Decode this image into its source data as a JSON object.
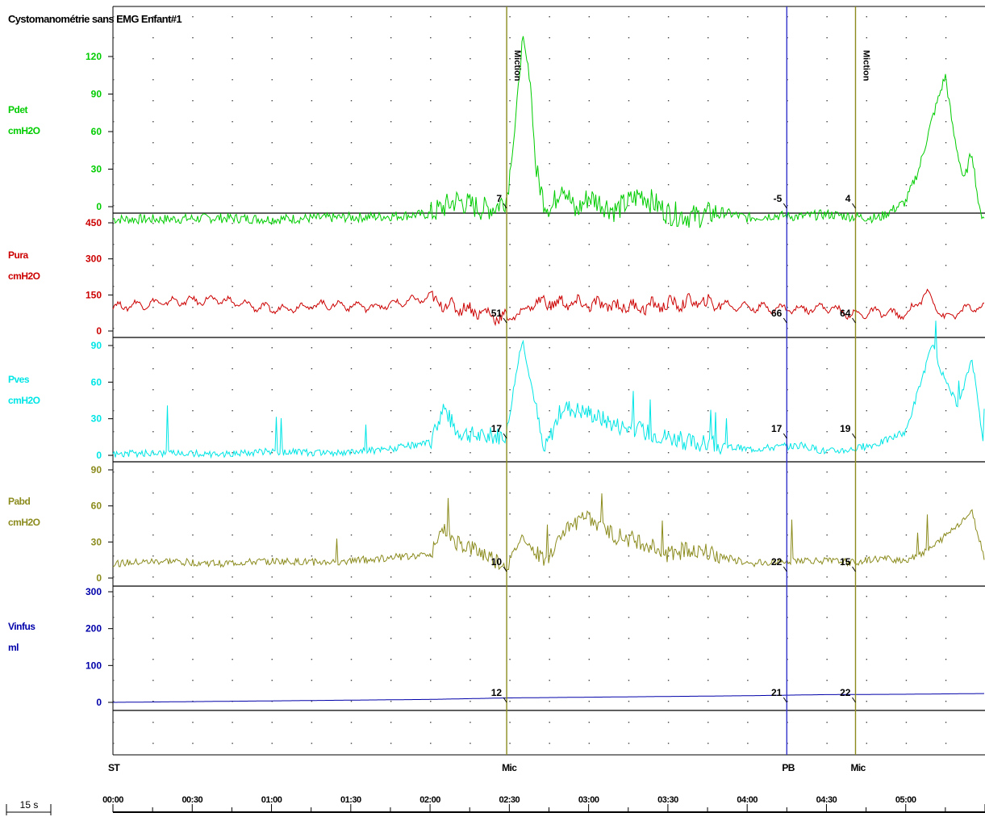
{
  "title": "Cystomanométrie sans EMG Enfant#1",
  "chart_data": {
    "type": "line",
    "title": "Cystomanométrie sans EMG Enfant#1",
    "time_axis": {
      "unit_label": "15 s",
      "range_seconds": [
        0,
        330
      ],
      "ticks": [
        "00:00",
        "00:30",
        "01:00",
        "01:30",
        "02:00",
        "02:30",
        "03:00",
        "03:30",
        "04:00",
        "04:30",
        "05:00"
      ]
    },
    "events": [
      {
        "label": "ST",
        "time": "00:00"
      },
      {
        "label": "Mic",
        "time": "02:29",
        "annotation": "Miction"
      },
      {
        "label": "PB",
        "time": "04:15"
      },
      {
        "label": "Mic",
        "time": "04:41",
        "annotation": "Miction"
      }
    ],
    "channels": [
      {
        "name": "Pdet",
        "unit": "cmH2O",
        "color": "#00cc00",
        "ticks": [
          0,
          30,
          60,
          90,
          120
        ],
        "ylim": [
          -10,
          130
        ],
        "baseline": 0,
        "markers": [
          7,
          -5,
          4
        ],
        "series_approx": {
          "t": [
            0,
            20,
            40,
            60,
            80,
            100,
            120,
            130,
            140,
            145,
            149,
            152,
            155,
            158,
            160,
            163,
            166,
            170,
            175,
            180,
            190,
            200,
            210,
            220,
            230,
            240,
            250,
            260,
            270,
            280,
            290,
            300,
            305,
            310,
            315,
            318,
            322,
            325,
            328,
            330
          ],
          "v": [
            -10,
            -10,
            -9,
            -10,
            -9,
            -8,
            -6,
            5,
            -2,
            0,
            7,
            60,
            135,
            100,
            30,
            5,
            -2,
            20,
            -5,
            8,
            -3,
            10,
            -5,
            -8,
            -4,
            -9,
            -7,
            -8,
            -6,
            -8,
            -9,
            4,
            30,
            70,
            105,
            60,
            20,
            45,
            -5,
            -8
          ]
        }
      },
      {
        "name": "Pura",
        "unit": "cmH2O",
        "color": "#cc0000",
        "ticks": [
          0,
          150,
          300,
          450
        ],
        "ylim": [
          0,
          450
        ],
        "markers": [
          51,
          66,
          64
        ],
        "series_approx": {
          "t": [
            0,
            20,
            40,
            60,
            80,
            100,
            120,
            125,
            135,
            149,
            155,
            160,
            180,
            200,
            220,
            240,
            260,
            270,
            280,
            290,
            300,
            308,
            315,
            322,
            330
          ],
          "v": [
            100,
            120,
            130,
            90,
            110,
            100,
            140,
            110,
            90,
            51,
            80,
            120,
            110,
            100,
            120,
            100,
            90,
            100,
            66,
            80,
            64,
            160,
            50,
            90,
            100
          ]
        }
      },
      {
        "name": "Pves",
        "unit": "cmH2O",
        "color": "#00e5e5",
        "ticks": [
          0,
          30,
          60,
          90
        ],
        "ylim": [
          0,
          90
        ],
        "markers": [
          17,
          17,
          19
        ],
        "series_approx": {
          "t": [
            0,
            20,
            40,
            60,
            80,
            100,
            120,
            125,
            130,
            140,
            149,
            152,
            155,
            160,
            163,
            170,
            180,
            190,
            200,
            210,
            220,
            240,
            260,
            270,
            280,
            290,
            300,
            305,
            310,
            315,
            320,
            325,
            330
          ],
          "v": [
            1,
            2,
            1,
            3,
            2,
            4,
            10,
            40,
            20,
            15,
            17,
            60,
            95,
            40,
            2,
            40,
            35,
            25,
            20,
            15,
            10,
            5,
            8,
            3,
            5,
            10,
            19,
            55,
            90,
            60,
            40,
            80,
            2
          ]
        }
      },
      {
        "name": "Pabd",
        "unit": "cmH2O",
        "color": "#8b8b1e",
        "ticks": [
          0,
          30,
          60,
          90
        ],
        "ylim": [
          0,
          90
        ],
        "markers": [
          10,
          22,
          15
        ],
        "series_approx": {
          "t": [
            0,
            20,
            40,
            60,
            80,
            100,
            120,
            125,
            130,
            140,
            149,
            155,
            160,
            165,
            170,
            180,
            190,
            200,
            210,
            220,
            240,
            260,
            280,
            290,
            300,
            310,
            320,
            325,
            330
          ],
          "v": [
            12,
            14,
            12,
            14,
            13,
            16,
            20,
            40,
            30,
            20,
            10,
            35,
            20,
            15,
            40,
            50,
            35,
            30,
            20,
            25,
            12,
            15,
            13,
            16,
            15,
            25,
            45,
            55,
            15
          ]
        }
      },
      {
        "name": "Vinfus",
        "unit": "ml",
        "color": "#0000aa",
        "ticks": [
          0,
          100,
          200,
          300
        ],
        "ylim": [
          -50,
          310
        ],
        "markers": [
          12,
          21,
          22
        ],
        "series_approx": {
          "t": [
            0,
            30,
            60,
            90,
            120,
            149,
            180,
            210,
            240,
            270,
            300,
            330
          ],
          "v": [
            0,
            2,
            4,
            6,
            8,
            12,
            14,
            16,
            18,
            21,
            22,
            24
          ]
        }
      }
    ]
  }
}
